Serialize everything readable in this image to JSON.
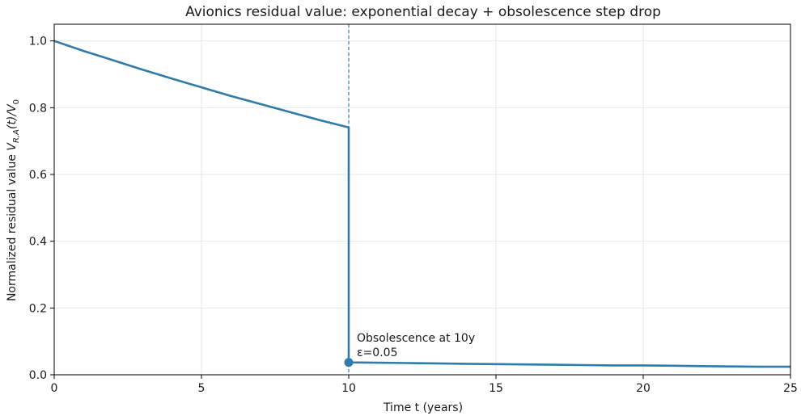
{
  "chart_data": {
    "type": "line",
    "title": "Avionics residual value: exponential decay + obsolescence step drop",
    "xlabel": "Time t (years)",
    "ylabel_main": "Normalized residual value ",
    "ylabel_math_v": "V",
    "ylabel_math_sub": "R,A",
    "ylabel_math_arg": "(t)/",
    "ylabel_math_v0": "V",
    "ylabel_math_v0_sub": "0",
    "xlim": [
      0,
      25
    ],
    "ylim": [
      0,
      1.05
    ],
    "xticks": [
      0,
      5,
      10,
      15,
      20,
      25
    ],
    "xtick_labels": [
      "0",
      "5",
      "10",
      "15",
      "20",
      "25"
    ],
    "yticks": [
      0.0,
      0.2,
      0.4,
      0.6,
      0.8,
      1.0
    ],
    "ytick_labels": [
      "0.0",
      "0.2",
      "0.4",
      "0.6",
      "0.8",
      "1.0"
    ],
    "grid": true,
    "series": [
      {
        "color": "#2f7bab",
        "decay_rate_per_year": 0.03,
        "x": [
          0,
          1,
          2,
          3,
          4,
          5,
          6,
          7,
          8,
          9,
          10,
          10,
          11,
          12,
          13,
          14,
          15,
          16,
          17,
          18,
          19,
          20,
          21,
          22,
          23,
          24,
          25
        ],
        "y": [
          1.0,
          0.97,
          0.942,
          0.914,
          0.887,
          0.861,
          0.835,
          0.811,
          0.787,
          0.763,
          0.741,
          0.037,
          0.036,
          0.035,
          0.034,
          0.033,
          0.032,
          0.031,
          0.03,
          0.029,
          0.028,
          0.028,
          0.027,
          0.026,
          0.025,
          0.024,
          0.024
        ]
      }
    ],
    "vline": {
      "x": 10,
      "style": "dashed",
      "color": "#2f7bab"
    },
    "marker": {
      "x": 10,
      "y": 0.037
    },
    "annotation": {
      "line1": "Obsolescence at 10y",
      "line2": "ε=0.05"
    }
  }
}
